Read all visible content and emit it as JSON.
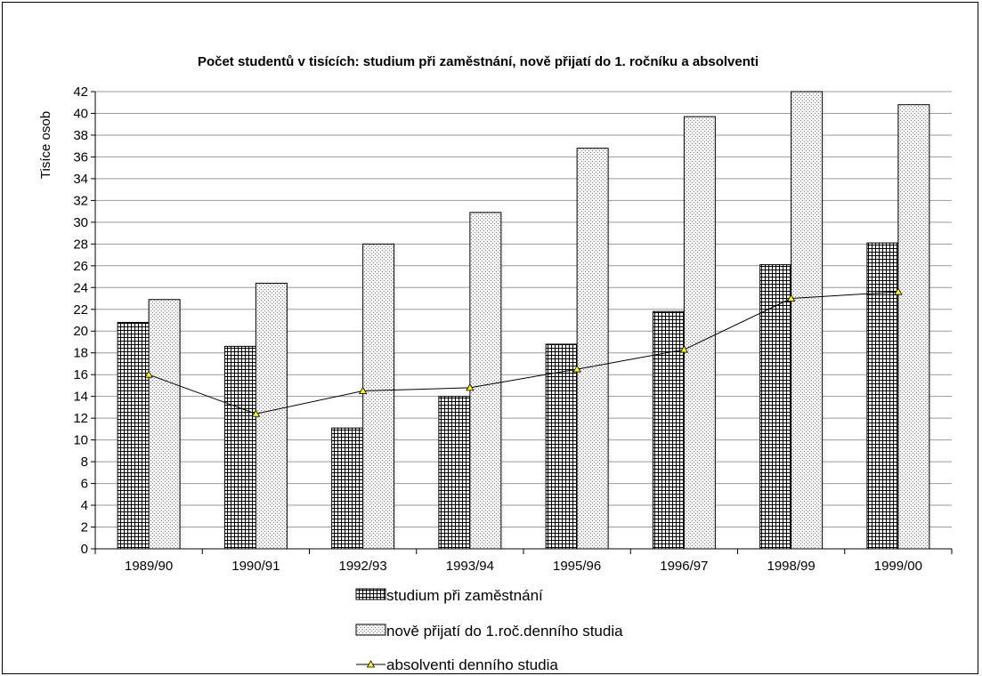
{
  "chart_data": {
    "type": "bar",
    "title": "Počet studentů v tisících: studium při zaměstnání, nově přijatí do 1. ročníku a absolventi",
    "ylabel": "Tisíce osob",
    "xlabel": "",
    "ylim": [
      0,
      42
    ],
    "ytick_step": 2,
    "grid": true,
    "legend_position": "bottom",
    "categories": [
      "1989/90",
      "1990/91",
      "1992/93",
      "1993/94",
      "1995/96",
      "1996/97",
      "1998/99",
      "1999/00"
    ],
    "series": [
      {
        "name": "studium při zaměstnání",
        "type": "bar",
        "pattern": "grid",
        "values": [
          20.8,
          18.6,
          11.1,
          14.0,
          18.8,
          21.8,
          26.1,
          28.1
        ]
      },
      {
        "name": "nově přijatí do 1.roč.denního studia",
        "type": "bar",
        "pattern": "dots",
        "values": [
          22.9,
          24.4,
          28.0,
          30.9,
          36.8,
          39.7,
          42.0,
          40.8
        ]
      },
      {
        "name": "absolventi denního studia",
        "type": "line",
        "marker": "triangle",
        "marker_color": "#ffff00",
        "values": [
          16.0,
          12.4,
          14.5,
          14.8,
          16.5,
          18.3,
          23.0,
          23.6
        ]
      }
    ]
  }
}
